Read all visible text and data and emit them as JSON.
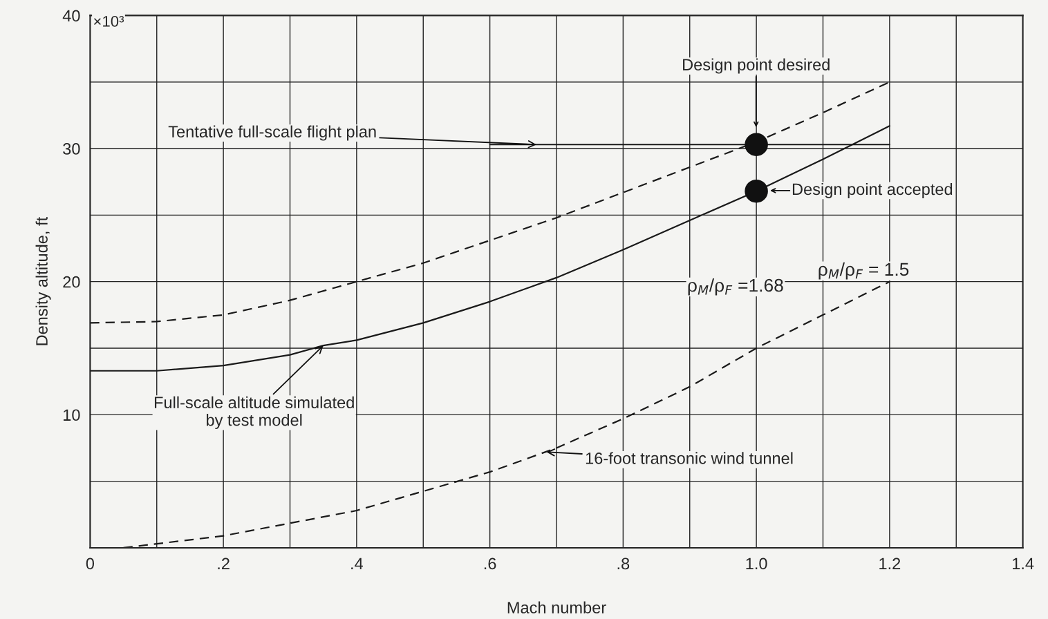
{
  "chart_data": {
    "type": "line",
    "xlabel": "Mach number",
    "ylabel": "Density altitude, ft",
    "xlim": [
      0,
      1.4
    ],
    "ylim": [
      0,
      40
    ],
    "xticks": [
      0,
      {
        "value": 0.1,
        "label": null
      },
      {
        "value": 0.2,
        "label": ".2"
      },
      {
        "value": 0.3,
        "label": null
      },
      {
        "value": 0.4,
        "label": ".4"
      },
      {
        "value": 0.5,
        "label": null
      },
      {
        "value": 0.6,
        "label": ".6"
      },
      {
        "value": 0.7,
        "label": null
      },
      {
        "value": 0.8,
        "label": ".8"
      },
      {
        "value": 0.9,
        "label": null
      },
      {
        "value": 1.0,
        "label": "1.0"
      },
      {
        "value": 1.1,
        "label": null
      },
      {
        "value": 1.2,
        "label": "1.2"
      },
      {
        "value": 1.3,
        "label": null
      },
      {
        "value": 1.4,
        "label": "1.4"
      }
    ],
    "yticks": [
      {
        "value": 0,
        "label": null
      },
      {
        "value": 5,
        "label": null
      },
      10,
      {
        "value": 15,
        "label": null
      },
      20,
      {
        "value": 25,
        "label": null
      },
      30,
      {
        "value": 35,
        "label": null
      },
      40
    ],
    "grid": true,
    "legend": false,
    "series": [
      {
        "color": "#1a1a1a",
        "line_style": "dashed",
        "x": [
          0,
          0.1,
          0.2,
          0.3,
          0.4,
          0.5,
          0.6,
          0.7,
          0.8,
          0.9,
          1.0,
          1.1,
          1.2
        ],
        "values": [
          16.9,
          17.0,
          17.5,
          18.6,
          20.0,
          21.4,
          23.1,
          24.8,
          26.7,
          28.6,
          30.5,
          32.7,
          35.0
        ]
      },
      {
        "color": "#1a1a1a",
        "line_style": "solid",
        "x": [
          0,
          0.1,
          0.2,
          0.3,
          0.35,
          0.4,
          0.5,
          0.6,
          0.7,
          0.8,
          0.9,
          1.0,
          1.1,
          1.2
        ],
        "values": [
          13.3,
          13.3,
          13.7,
          14.5,
          15.2,
          15.6,
          16.9,
          18.5,
          20.3,
          22.4,
          24.6,
          26.8,
          29.2,
          31.7
        ]
      },
      {
        "color": "#1a1a1a",
        "line_style": "dashed",
        "x": [
          0.05,
          0.2,
          0.4,
          0.6,
          0.7,
          0.8,
          0.9,
          1.0,
          1.1,
          1.2
        ],
        "values": [
          0,
          0.9,
          2.8,
          5.7,
          7.5,
          9.7,
          12.1,
          15.0,
          17.5,
          20.0
        ]
      },
      {
        "color": "#1a1a1a",
        "line_style": "solid",
        "x": [
          0.6,
          1.2
        ],
        "values": [
          30.3,
          30.3
        ]
      },
      {
        "type": "scatter",
        "marker": "circle",
        "color": "#111111",
        "x": [
          1.0,
          1.0
        ],
        "values": [
          30.3,
          26.8
        ]
      }
    ],
    "annotations": [
      {
        "text": "Tentative full-scale flight plan",
        "x": 0.67,
        "y": 30.3
      },
      "Design point desired",
      "Design point accepted",
      {
        "text": "Full-scale altitude simulated\nby test model",
        "x": 0.35,
        "y": 15.2
      },
      {
        "text": "16-foot transonic wind tunnel",
        "x": 0.685,
        "y": 7.2
      },
      "ρ$_{M}$/ρ$_{F}$ =1.68",
      "ρ$_{M}$/ρ$_{F}$ = 1.5",
      "×10³"
    ]
  }
}
